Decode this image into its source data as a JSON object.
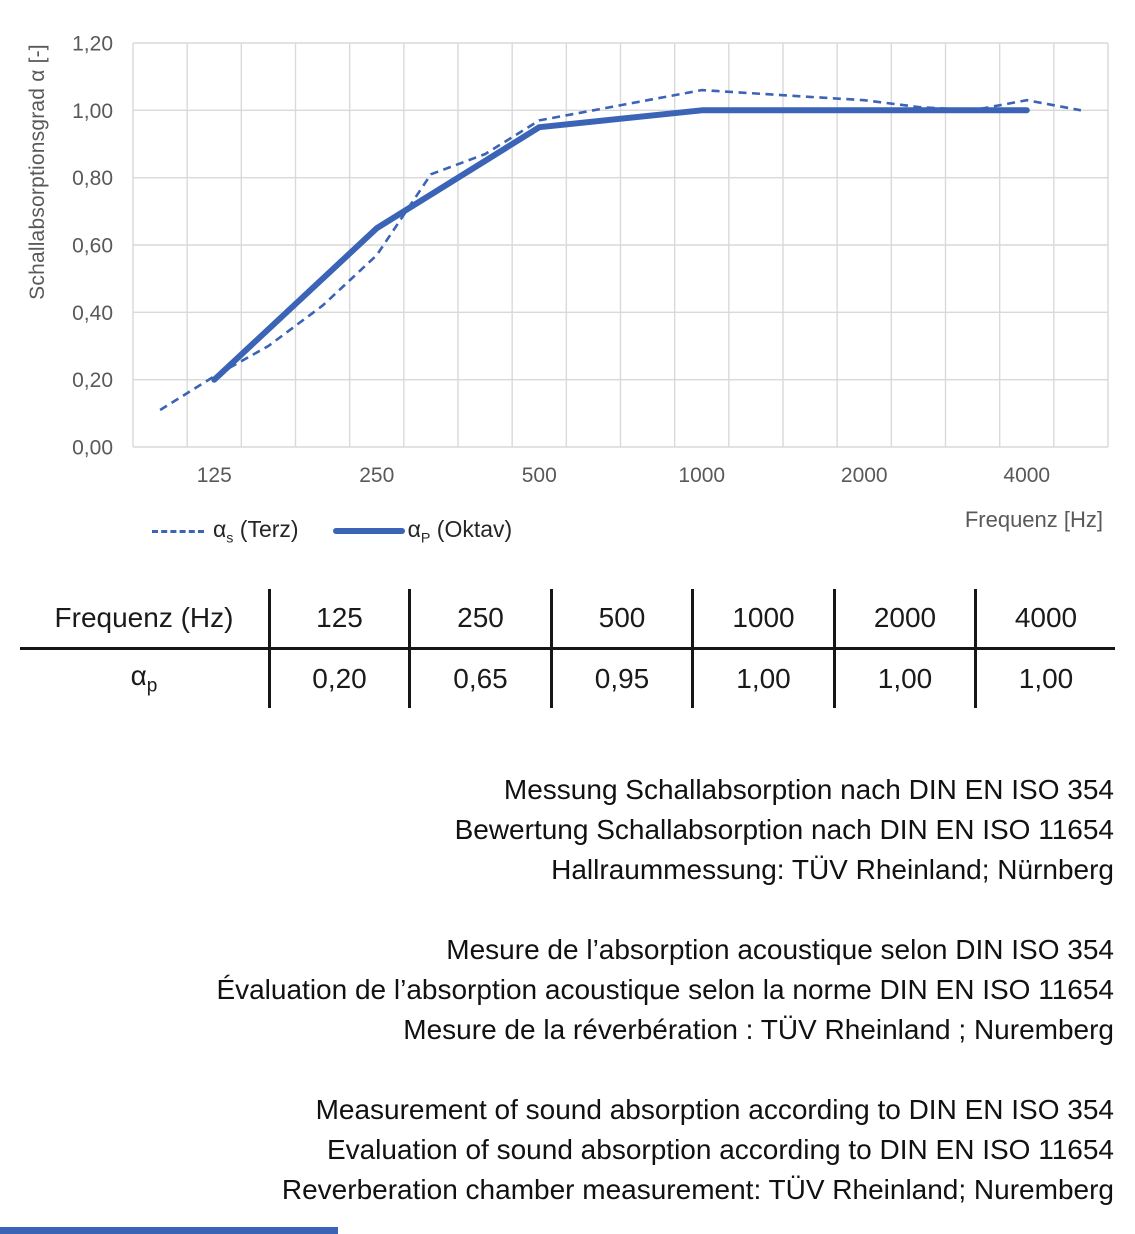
{
  "chart": {
    "ylabel": "Schallabsorptionsgrad α [-]",
    "xlabel": "Frequenz [Hz]",
    "legend": [
      {
        "alpha": "α",
        "sub": "s",
        "rest": " (Terz)"
      },
      {
        "alpha": "α",
        "sub": "P",
        "rest": " (Oktav)"
      }
    ]
  },
  "chart_data": {
    "type": "line",
    "title": "",
    "xlabel": "Frequenz [Hz]",
    "ylabel": "Schallabsorptionsgrad α [-]",
    "x_scale": "logarithmic, third-octave band categories",
    "band_frequencies": [
      100,
      125,
      160,
      200,
      250,
      315,
      400,
      500,
      630,
      800,
      1000,
      1250,
      1600,
      2000,
      2500,
      3150,
      4000,
      5000
    ],
    "x_tick_labels": [
      "125",
      "250",
      "500",
      "1000",
      "2000",
      "4000"
    ],
    "x_tick_band_indices": [
      1,
      4,
      7,
      10,
      13,
      16
    ],
    "y_tick_labels": [
      "0,00",
      "0,20",
      "0,40",
      "0,60",
      "0,80",
      "1,00",
      "1,20"
    ],
    "y_tick_values": [
      0,
      0.2,
      0.4,
      0.6,
      0.8,
      1.0,
      1.2
    ],
    "ylim": [
      0,
      1.2
    ],
    "grid": true,
    "legend_position": "bottom-left",
    "line_color": "#3b63b6",
    "grid_color": "#d9d9d9",
    "tick_color": "#595959",
    "series": [
      {
        "name": "αs (Terz)",
        "style": "dashed",
        "band_indices": [
          0,
          1,
          2,
          3,
          4,
          5,
          6,
          7,
          8,
          9,
          10,
          11,
          12,
          13,
          14,
          15,
          16,
          17
        ],
        "values": [
          0.11,
          0.21,
          0.3,
          0.42,
          0.57,
          0.81,
          0.87,
          0.97,
          1.0,
          1.03,
          1.06,
          1.05,
          1.04,
          1.03,
          1.01,
          1.0,
          1.03,
          1.0
        ]
      },
      {
        "name": "αP (Oktav)",
        "style": "solid",
        "band_indices": [
          1,
          4,
          7,
          10,
          13,
          16
        ],
        "values": [
          0.2,
          0.65,
          0.95,
          1.0,
          1.0,
          1.0
        ]
      }
    ]
  },
  "table": {
    "header_label": "Frequenz (Hz)",
    "row_label_alpha": "α",
    "row_label_sub": "p",
    "frequencies": [
      "125",
      "250",
      "500",
      "1000",
      "2000",
      "4000"
    ],
    "alpha_p_values": [
      "0,20",
      "0,65",
      "0,95",
      "1,00",
      "1,00",
      "1,00"
    ]
  },
  "notes": {
    "de": [
      "Messung Schallabsorption nach DIN EN ISO 354",
      "Bewertung Schallabsorption nach DIN EN ISO 11654",
      "Hallraummessung: TÜV Rheinland; Nürnberg"
    ],
    "fr": [
      "Mesure de l’absorption acoustique selon DIN ISO 354",
      "Évaluation de l’absorption acoustique selon la norme DIN EN ISO 11654",
      "Mesure de la réverbération : TÜV Rheinland ; Nuremberg"
    ],
    "en": [
      "Measurement of sound absorption according to DIN EN ISO 354",
      "Evaluation of sound absorption according to DIN EN ISO 11654",
      "Reverberation chamber measurement: TÜV Rheinland; Nuremberg"
    ]
  },
  "footer": {
    "accent_color": "#3b63b6"
  }
}
